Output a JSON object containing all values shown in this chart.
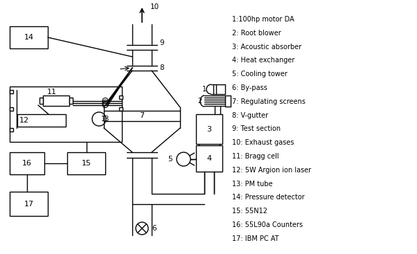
{
  "background_color": "#ffffff",
  "line_color": "#000000",
  "legend_items": [
    "1:100hp motor DA",
    "2: Root blower",
    "3: Acoustic absorber",
    "4: Heat exchanger",
    "5: Cooling tower",
    "6: By-pass",
    "7: Regulating screens",
    "8: V-gutter",
    "9: Test section",
    "10: Exhaust gases",
    "11: Bragg cell",
    "12: 5W Argion ion laser",
    "13: PM tube",
    "14: Pressure detector",
    "15: 55N12",
    "16: 55L90a Counters",
    "17: IBM PC AT"
  ],
  "fig_width": 6.02,
  "fig_height": 3.67,
  "dpi": 100
}
